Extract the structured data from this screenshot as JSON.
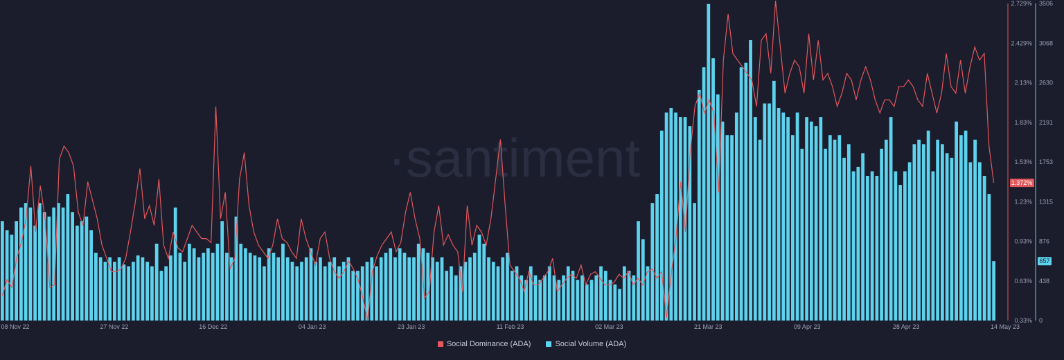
{
  "chart_data": {
    "type": "bar+line",
    "watermark": "·santiment",
    "x_tick_labels": [
      "08 Nov 22",
      "27 Nov 22",
      "16 Dec 22",
      "04 Jan 23",
      "23 Jan 23",
      "11 Feb 23",
      "02 Mar 23",
      "21 Mar 23",
      "09 Apr 23",
      "28 Apr 23",
      "14 May 23"
    ],
    "left_axis_ticks": [
      "2.729%",
      "2.429%",
      "2.13%",
      "1.83%",
      "1.53%",
      "1.23%",
      "0.93%",
      "0.63%",
      "0.33%"
    ],
    "right_axis_ticks": [
      "3506",
      "3068",
      "2630",
      "2191",
      "1753",
      "1315",
      "876",
      "438",
      "0"
    ],
    "left_range": [
      0.33,
      2.729
    ],
    "right_range": [
      0,
      3506
    ],
    "current_values": {
      "dominance": "1.372%",
      "volume": "657"
    },
    "colors": {
      "dominance": "#e2585c",
      "volume": "#5ed3ee",
      "background": "#1b1d2c"
    },
    "series": [
      {
        "name": "Social Dominance (ADA)",
        "axis": "left",
        "values": [
          0.52,
          0.64,
          0.58,
          0.8,
          0.92,
          1.1,
          1.5,
          1.0,
          1.35,
          1.1,
          0.58,
          0.6,
          1.55,
          1.65,
          1.6,
          1.5,
          1.15,
          1.05,
          1.38,
          1.24,
          1.1,
          0.9,
          0.8,
          0.7,
          0.7,
          0.72,
          0.8,
          1.0,
          1.22,
          1.48,
          1.1,
          1.2,
          1.05,
          1.4,
          0.9,
          0.8,
          1.0,
          0.88,
          0.85,
          0.95,
          1.05,
          1.0,
          0.95,
          0.95,
          0.92,
          1.95,
          1.1,
          1.3,
          0.72,
          0.8,
          1.4,
          1.6,
          1.2,
          1.0,
          0.9,
          0.85,
          0.8,
          0.9,
          1.1,
          0.95,
          0.92,
          0.85,
          0.8,
          1.1,
          0.95,
          0.85,
          0.75,
          0.95,
          1.0,
          0.8,
          0.7,
          0.65,
          0.7,
          0.78,
          0.72,
          0.64,
          0.5,
          0.33,
          0.7,
          0.82,
          0.9,
          0.95,
          1.0,
          0.85,
          0.92,
          1.15,
          1.3,
          1.1,
          0.95,
          0.5,
          0.55,
          1.0,
          1.2,
          0.9,
          0.98,
          0.9,
          0.85,
          0.55,
          1.2,
          0.9,
          1.05,
          1.0,
          0.9,
          1.1,
          1.4,
          1.7,
          1.2,
          0.75,
          0.7,
          0.65,
          0.55,
          0.7,
          0.6,
          0.6,
          0.65,
          0.7,
          0.8,
          0.55,
          0.6,
          0.65,
          0.68,
          0.65,
          0.75,
          0.6,
          0.68,
          0.7,
          0.65,
          0.6,
          0.6,
          0.62,
          0.68,
          0.65,
          0.7,
          0.6,
          0.65,
          0.6,
          0.7,
          0.72,
          0.65,
          0.7,
          0.35,
          0.68,
          0.95,
          1.38,
          1.0,
          1.6,
          1.95,
          2.05,
          1.9,
          2.0,
          1.9,
          1.3,
          2.3,
          2.65,
          2.35,
          2.3,
          2.25,
          2.2,
          2.15,
          1.95,
          2.45,
          2.5,
          2.2,
          2.75,
          2.4,
          2.05,
          2.2,
          2.3,
          2.25,
          2.05,
          2.5,
          2.15,
          2.45,
          2.15,
          2.2,
          2.1,
          1.95,
          2.05,
          2.2,
          2.15,
          2.0,
          2.15,
          2.25,
          2.15,
          2.0,
          1.9,
          2.0,
          2.0,
          1.95,
          2.1,
          2.1,
          2.15,
          2.1,
          2.0,
          1.95,
          2.2,
          2.05,
          1.9,
          2.05,
          2.35,
          2.1,
          2.05,
          2.3,
          2.05,
          2.25,
          2.4,
          2.3,
          2.35,
          1.65,
          1.372
        ]
      },
      {
        "name": "Social Volume (ADA)",
        "axis": "right",
        "values": [
          1100,
          1000,
          950,
          1100,
          1250,
          1300,
          1250,
          1050,
          1300,
          1200,
          1150,
          1250,
          1300,
          1250,
          1400,
          1200,
          1050,
          1100,
          1150,
          1000,
          750,
          700,
          650,
          700,
          650,
          700,
          620,
          600,
          650,
          720,
          700,
          650,
          600,
          850,
          550,
          600,
          720,
          1250,
          750,
          650,
          850,
          800,
          700,
          750,
          800,
          750,
          850,
          1100,
          750,
          700,
          1150,
          850,
          800,
          750,
          720,
          700,
          600,
          800,
          750,
          700,
          850,
          700,
          650,
          600,
          650,
          700,
          800,
          650,
          700,
          600,
          650,
          700,
          600,
          650,
          700,
          550,
          550,
          600,
          650,
          700,
          600,
          700,
          750,
          800,
          700,
          800,
          750,
          700,
          700,
          850,
          800,
          750,
          700,
          650,
          700,
          550,
          600,
          500,
          600,
          650,
          700,
          750,
          950,
          850,
          700,
          650,
          600,
          700,
          750,
          550,
          600,
          500,
          450,
          600,
          500,
          450,
          500,
          600,
          500,
          450,
          500,
          600,
          550,
          450,
          500,
          400,
          450,
          500,
          600,
          550,
          450,
          400,
          350,
          600,
          550,
          500,
          1100,
          900,
          600,
          1300,
          1400,
          2100,
          2300,
          2350,
          2300,
          2250,
          2250,
          2150,
          1300,
          2550,
          2800,
          3500,
          2900,
          2500,
          2200,
          2050,
          2050,
          2300,
          2800,
          2850,
          3100,
          2250,
          2000,
          2400,
          2400,
          2650,
          2350,
          2300,
          2250,
          2050,
          2300,
          1900,
          2250,
          2200,
          2150,
          2250,
          1900,
          2050,
          2000,
          2050,
          1800,
          1950,
          1650,
          1700,
          1850,
          1600,
          1650,
          1600,
          1900,
          2000,
          2250,
          1650,
          1500,
          1650,
          1750,
          1950,
          2000,
          1950,
          2100,
          1650,
          2000,
          1950,
          1850,
          1800,
          2200,
          2050,
          2100,
          1750,
          2000,
          1750,
          1600,
          1400,
          657
        ]
      }
    ]
  }
}
